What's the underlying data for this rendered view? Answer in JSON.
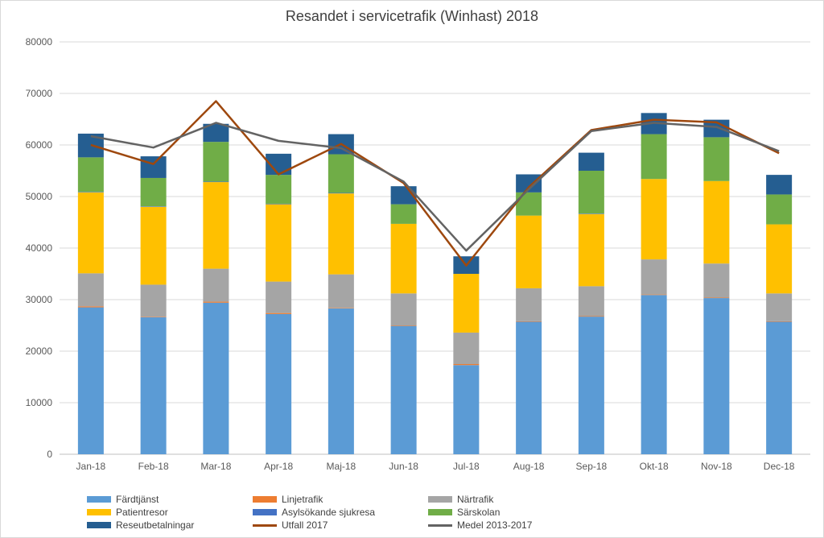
{
  "chart_data": {
    "type": "bar",
    "title": "Resandet i servicetrafik (Winhast) 2018",
    "xlabel": "",
    "ylabel": "",
    "ylim": [
      0,
      80000
    ],
    "yticks": [
      "0",
      "10000",
      "20000",
      "30000",
      "40000",
      "50000",
      "60000",
      "70000",
      "80000"
    ],
    "stacked": true,
    "grid": true,
    "legend_position": "bottom",
    "categories": [
      "Jan-18",
      "Feb-18",
      "Mar-18",
      "Apr-18",
      "Maj-18",
      "Jun-18",
      "Jul-18",
      "Aug-18",
      "Sep-18",
      "Okt-18",
      "Nov-18",
      "Dec-18"
    ],
    "series": [
      {
        "name": "Färdtjänst",
        "kind": "bar",
        "color": "#5b9bd5",
        "values": [
          28500,
          26600,
          29400,
          27200,
          28300,
          24900,
          17300,
          25700,
          26700,
          30900,
          30300,
          25700
        ]
      },
      {
        "name": "Linjetrafik",
        "kind": "bar",
        "color": "#ed7d31",
        "values": [
          200,
          100,
          200,
          200,
          100,
          100,
          200,
          100,
          100,
          100,
          100,
          100
        ]
      },
      {
        "name": "Närtrafik",
        "kind": "bar",
        "color": "#a5a5a5",
        "values": [
          6400,
          6200,
          6400,
          6100,
          6500,
          6200,
          6100,
          6400,
          5800,
          6800,
          6600,
          5400
        ]
      },
      {
        "name": "Patientresor",
        "kind": "bar",
        "color": "#ffc000",
        "values": [
          15700,
          15100,
          16800,
          15000,
          15700,
          13500,
          11400,
          14100,
          14000,
          15600,
          16000,
          13400
        ]
      },
      {
        "name": "Asylsökande sjukresa",
        "kind": "bar",
        "color": "#4472c4",
        "values": [
          100,
          100,
          100,
          100,
          100,
          0,
          0,
          0,
          100,
          0,
          0,
          0
        ]
      },
      {
        "name": "Särskolan",
        "kind": "bar",
        "color": "#70ad47",
        "values": [
          6700,
          5500,
          7700,
          5600,
          7500,
          3800,
          0,
          4500,
          8300,
          8700,
          8500,
          5800
        ]
      },
      {
        "name": "Reseutbetalningar",
        "kind": "bar",
        "color": "#255e91",
        "values": [
          4600,
          4200,
          3500,
          4100,
          3900,
          3500,
          3400,
          3500,
          3500,
          4100,
          3400,
          3800
        ]
      },
      {
        "name": "Utfall 2017",
        "kind": "line",
        "color": "#9e480e",
        "values": [
          60000,
          56300,
          68500,
          54300,
          60200,
          52600,
          36600,
          51800,
          62900,
          64900,
          64400,
          58400
        ]
      },
      {
        "name": "Medel 2013-2017",
        "kind": "line",
        "color": "#636363",
        "values": [
          61700,
          59500,
          64300,
          60800,
          59400,
          52900,
          39500,
          51400,
          62700,
          64300,
          63500,
          58800
        ]
      }
    ]
  },
  "legend": {
    "items": [
      {
        "label": "Färdtjänst",
        "color": "#5b9bd5",
        "kind": "bar"
      },
      {
        "label": "Linjetrafik",
        "color": "#ed7d31",
        "kind": "bar"
      },
      {
        "label": "Närtrafik",
        "color": "#a5a5a5",
        "kind": "bar"
      },
      {
        "label": "Patientresor",
        "color": "#ffc000",
        "kind": "bar"
      },
      {
        "label": "Asylsökande sjukresa",
        "color": "#4472c4",
        "kind": "bar"
      },
      {
        "label": "Särskolan",
        "color": "#70ad47",
        "kind": "bar"
      },
      {
        "label": "Reseutbetalningar",
        "color": "#255e91",
        "kind": "bar"
      },
      {
        "label": "Utfall 2017",
        "color": "#9e480e",
        "kind": "line"
      },
      {
        "label": "Medel 2013-2017",
        "color": "#636363",
        "kind": "line"
      }
    ]
  }
}
